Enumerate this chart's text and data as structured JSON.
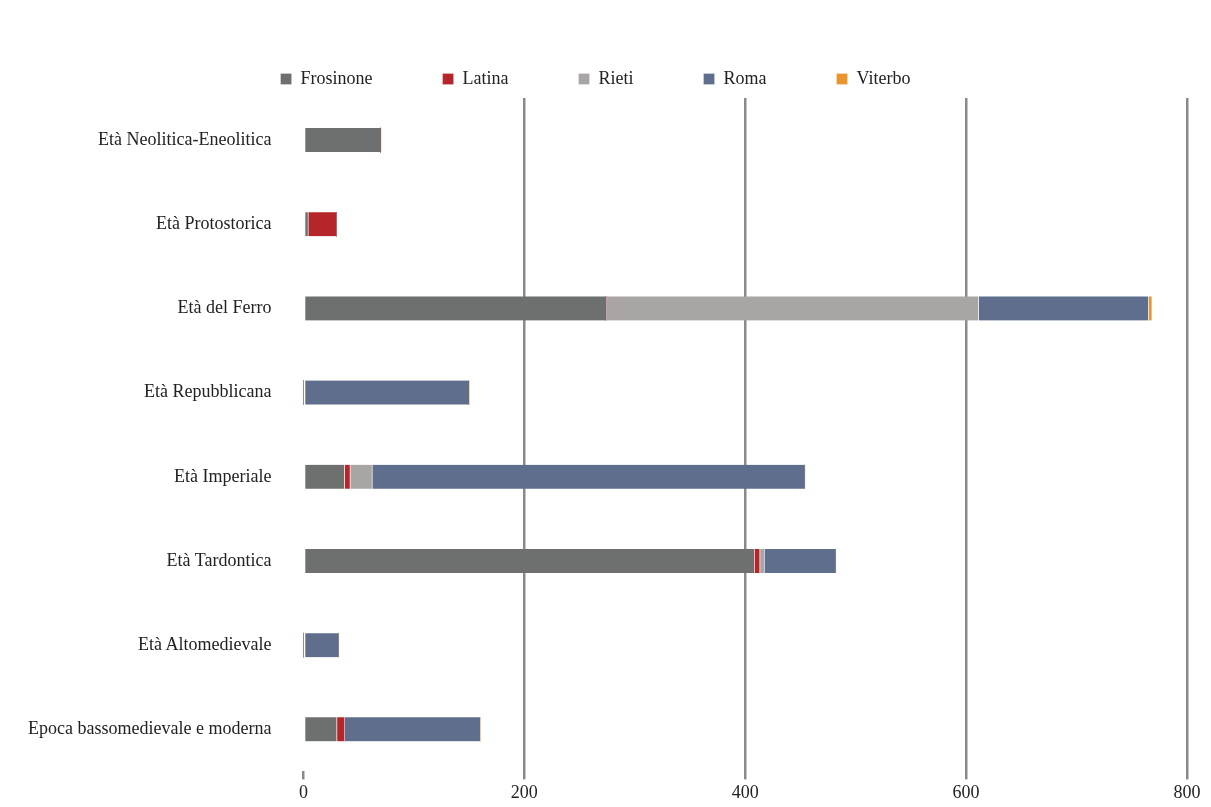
{
  "chart_data": {
    "type": "bar",
    "orientation": "horizontal",
    "stacked": true,
    "categories": [
      "Età Neolitica-Eneolitica",
      "Età Protostorica",
      "Età del Ferro",
      "Età Repubblicana",
      "Età Imperiale",
      "Età Tardontica",
      "Età Altomedievale",
      "Epoca bassomedievale e moderna"
    ],
    "series": [
      {
        "name": "Frosinone",
        "color": "#6d706f",
        "values": [
          70,
          4,
          274,
          0,
          37,
          408,
          0,
          30
        ]
      },
      {
        "name": "Latina",
        "color": "#b5262a",
        "values": [
          0,
          26,
          0,
          0,
          5,
          5,
          0,
          7
        ]
      },
      {
        "name": "Rieti",
        "color": "#a8a5a4",
        "values": [
          0,
          0,
          337,
          0,
          20,
          4,
          0,
          0
        ]
      },
      {
        "name": "Roma",
        "color": "#5f6e8c",
        "values": [
          0,
          0,
          154,
          150,
          392,
          65,
          32,
          123
        ]
      },
      {
        "name": "Viterbo",
        "color": "#e8962c",
        "values": [
          0,
          0,
          3,
          0,
          0,
          0,
          0,
          0
        ]
      }
    ],
    "xlim": [
      0,
      800
    ],
    "xticks": [
      0,
      200,
      400,
      600,
      800
    ],
    "grid": "x",
    "legend": "top"
  }
}
